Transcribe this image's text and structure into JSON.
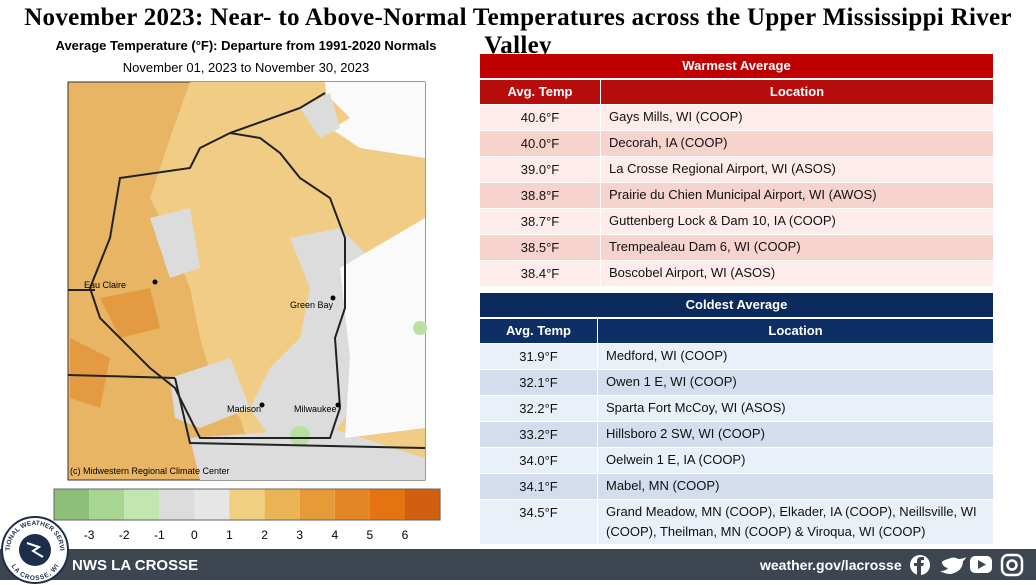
{
  "title": "November 2023:  Near- to Above-Normal Temperatures across the Upper Mississippi River Valley",
  "map": {
    "subtitle": "Average Temperature (°F): Departure from 1991-2020 Normals",
    "date_range": "November 01, 2023 to November 30, 2023",
    "labels": [
      "Eau Claire",
      "Green Bay",
      "Madison",
      "Milwaukee"
    ],
    "credit": "(c) Midwestern Regional Climate Center"
  },
  "legend": {
    "colors": [
      "#8dbf78",
      "#a8d590",
      "#c2e6b0",
      "#dcdcdc",
      "#e6e6e6",
      "#f0d080",
      "#eab455",
      "#e79a38",
      "#e58626",
      "#e37410",
      "#d06010"
    ],
    "ticks": [
      -3,
      -2,
      -1,
      0,
      1,
      2,
      3,
      4,
      5,
      6
    ]
  },
  "warmest": {
    "title": "Warmest  Average",
    "columns": [
      "Avg. Temp",
      "Location"
    ],
    "rows": [
      [
        "40.6°F",
        "Gays Mills, WI (COOP)"
      ],
      [
        "40.0°F",
        "Decorah, IA (COOP)"
      ],
      [
        "39.0°F",
        "La Crosse Regional Airport, WI (ASOS)"
      ],
      [
        "38.8°F",
        "Prairie du Chien Municipal Airport, WI (AWOS)"
      ],
      [
        "38.7°F",
        "Guttenberg Lock & Dam 10, IA (COOP)"
      ],
      [
        "38.5°F",
        "Trempealeau Dam 6, WI (COOP)"
      ],
      [
        "38.4°F",
        "Boscobel Airport, WI (ASOS)"
      ]
    ]
  },
  "coldest": {
    "title": "Coldest Average",
    "columns": [
      "Avg. Temp",
      "Location"
    ],
    "rows": [
      [
        "31.9°F",
        "Medford, WI (COOP)"
      ],
      [
        "32.1°F",
        "Owen 1 E, WI (COOP)"
      ],
      [
        "32.2°F",
        "Sparta Fort McCoy, WI (ASOS)"
      ],
      [
        "33.2°F",
        "Hillsboro 2 SW, WI (COOP)"
      ],
      [
        "34.0°F",
        "Oelwein 1 E, IA (COOP)"
      ],
      [
        "34.1°F",
        "Mabel, MN (COOP)"
      ],
      [
        "34.5°F",
        "Grand Meadow, MN (COOP), Elkader, IA (COOP), Neillsville, WI (COOP), Theilman, MN (COOP) & Viroqua, WI (COOP)"
      ]
    ]
  },
  "footer": {
    "logo_top": "NATIONAL WEATHER SERVICE",
    "logo_bottom": "LA CROSSE, WI",
    "office": "NWS LA CROSSE",
    "url": "weather.gov/lacrosse"
  }
}
